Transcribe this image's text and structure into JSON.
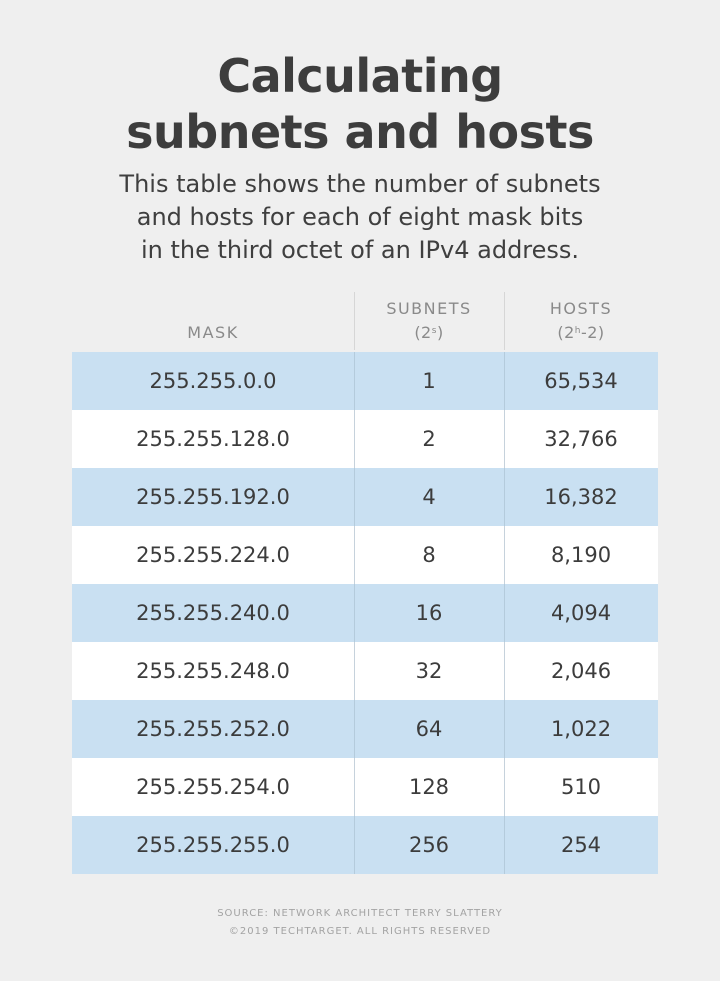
{
  "title": {
    "line1": "Calculating",
    "line2": "subnets and hosts"
  },
  "subtitle": {
    "line1": "This table shows the number of subnets",
    "line2": "and hosts for each of eight mask bits",
    "line3": "in the third octet of an IPv4 address."
  },
  "table": {
    "headers": {
      "mask": "MASK",
      "subnets": "SUBNETS",
      "subnets_formula_base": "(2",
      "subnets_formula_exp": "s",
      "subnets_formula_end": ")",
      "hosts": "HOSTS",
      "hosts_formula_base": "(2",
      "hosts_formula_exp": "h",
      "hosts_formula_end": "-2)"
    },
    "rows": [
      {
        "mask": "255.255.0.0",
        "subnets": "1",
        "hosts": "65,534",
        "shaded": true
      },
      {
        "mask": "255.255.128.0",
        "subnets": "2",
        "hosts": "32,766",
        "shaded": false
      },
      {
        "mask": "255.255.192.0",
        "subnets": "4",
        "hosts": "16,382",
        "shaded": true
      },
      {
        "mask": "255.255.224.0",
        "subnets": "8",
        "hosts": "8,190",
        "shaded": false
      },
      {
        "mask": "255.255.240.0",
        "subnets": "16",
        "hosts": "4,094",
        "shaded": true
      },
      {
        "mask": "255.255.248.0",
        "subnets": "32",
        "hosts": "2,046",
        "shaded": false
      },
      {
        "mask": "255.255.252.0",
        "subnets": "64",
        "hosts": "1,022",
        "shaded": true
      },
      {
        "mask": "255.255.254.0",
        "subnets": "128",
        "hosts": "510",
        "shaded": false
      },
      {
        "mask": "255.255.255.0",
        "subnets": "256",
        "hosts": "254",
        "shaded": true
      }
    ]
  },
  "footer": {
    "source": "SOURCE: NETWORK ARCHITECT TERRY SLATTERY",
    "copyright": "©2019 TECHTARGET. ALL RIGHTS RESERVED"
  },
  "colors": {
    "shaded_row": "#c9e0f2",
    "plain_row": "#ffffff",
    "background": "#efefef",
    "header_text": "#8a8a8a"
  }
}
